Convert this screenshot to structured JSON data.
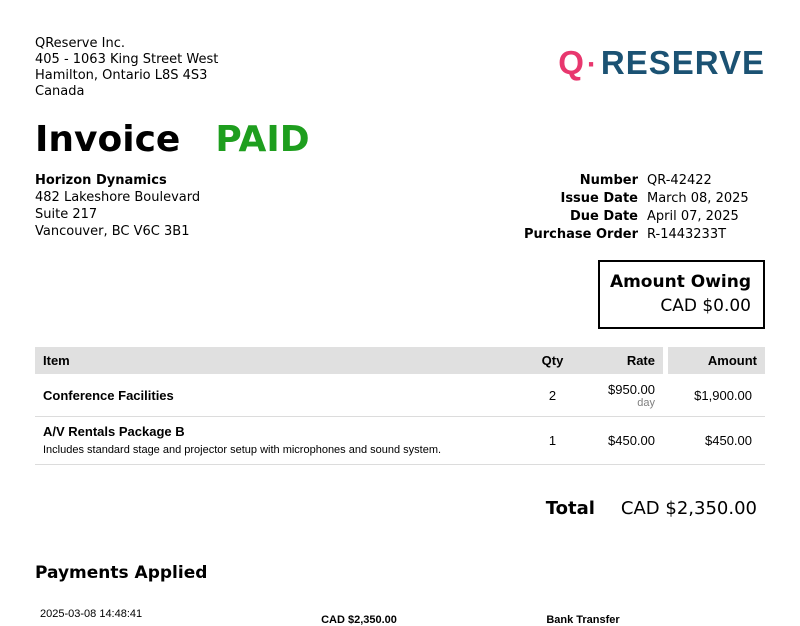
{
  "colors": {
    "logo_pink": "#E8376E",
    "logo_navy": "#1B5273",
    "paid_green": "#1E9E1E",
    "table_header_bg": "#E0E0E0"
  },
  "company": {
    "name": "QReserve Inc.",
    "address_line1": "405 - 1063 King Street West",
    "address_line2": "Hamilton, Ontario  L8S 4S3",
    "address_line3": "Canada"
  },
  "logo": {
    "q": "Q",
    "dot": "·",
    "wordmark": "RESERVE"
  },
  "title": {
    "text": "Invoice",
    "status": "PAID"
  },
  "bill_to": {
    "name": "Horizon Dynamics",
    "address_line1": "482 Lakeshore Boulevard",
    "address_line2": "Suite 217",
    "address_line3": "Vancouver, BC V6C 3B1"
  },
  "details": {
    "number_label": "Number",
    "number_value": "QR-42422",
    "issue_date_label": "Issue Date",
    "issue_date_value": "March 08, 2025",
    "due_date_label": "Due Date",
    "due_date_value": "April 07, 2025",
    "purchase_order_label": "Purchase Order",
    "purchase_order_value": "R-1443233T"
  },
  "amount_owing": {
    "label": "Amount Owing",
    "value": "CAD $0.00"
  },
  "items_table": {
    "headers": {
      "item": "Item",
      "qty": "Qty",
      "rate": "Rate",
      "amount": "Amount"
    },
    "rows": [
      {
        "item": "Conference Facilities",
        "qty": "2",
        "rate": "$950.00",
        "rate_unit": "day",
        "amount": "$1,900.00"
      },
      {
        "item": "A/V Rentals Package B",
        "description": "Includes standard stage and projector setup with microphones and sound system.",
        "qty": "1",
        "rate": "$450.00",
        "amount": "$450.00"
      }
    ]
  },
  "total": {
    "label": "Total",
    "value": "CAD $2,350.00"
  },
  "payments": {
    "heading": "Payments Applied",
    "rows": [
      {
        "date": "2025-03-08 14:48:41",
        "amount": "CAD $2,350.00",
        "method": "Bank Transfer"
      }
    ]
  }
}
